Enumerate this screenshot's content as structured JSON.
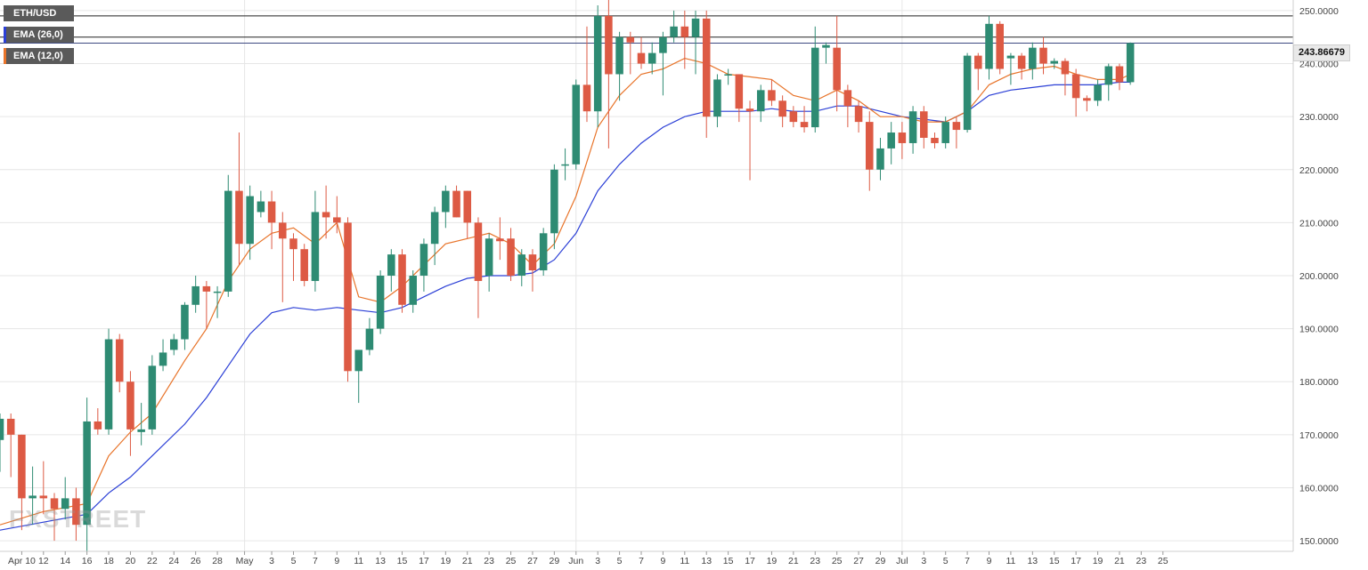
{
  "legend": {
    "symbol": "ETH/USD",
    "ema_long": "EMA (26,0)",
    "ema_short": "EMA (12,0)"
  },
  "price_tag": "243.86679",
  "watermark": "FXSTREET",
  "colors": {
    "bull": "#2e8b73",
    "bear": "#dd5a44",
    "ema_long": "#2b3fd6",
    "ema_short": "#e8742a",
    "grid": "#e6e6e6"
  },
  "chart_data": {
    "type": "candlestick",
    "ylim": [
      148,
      252
    ],
    "yticks": [
      "150.0000",
      "160.0000",
      "170.0000",
      "180.0000",
      "190.0000",
      "200.0000",
      "210.0000",
      "220.0000",
      "230.0000",
      "240.0000",
      "250.0000"
    ],
    "ytick_values": [
      150,
      160,
      170,
      180,
      190,
      200,
      210,
      220,
      230,
      240,
      250
    ],
    "x_range": [
      0,
      118
    ],
    "xtick_labels": [
      "Apr 10",
      "12",
      "14",
      "16",
      "18",
      "20",
      "22",
      "24",
      "26",
      "28",
      "May",
      "3",
      "5",
      "7",
      "9",
      "11",
      "13",
      "15",
      "17",
      "19",
      "21",
      "23",
      "25",
      "27",
      "29",
      "Jun",
      "3",
      "5",
      "7",
      "9",
      "11",
      "13",
      "15",
      "17",
      "19",
      "21",
      "23",
      "25",
      "27",
      "29",
      "Jul",
      "3",
      "5",
      "7",
      "9",
      "11",
      "13",
      "15",
      "17",
      "19",
      "21",
      "23",
      "25"
    ],
    "xtick_positions": [
      2,
      4,
      6,
      8,
      10,
      12,
      14,
      16,
      18,
      20,
      22.5,
      25,
      27,
      29,
      31,
      33,
      35,
      37,
      39,
      41,
      43,
      45,
      47,
      49,
      51,
      53,
      55,
      57,
      59,
      61,
      63,
      65,
      67,
      69,
      71,
      73,
      75,
      77,
      79,
      81,
      83,
      85,
      87,
      89,
      91,
      93,
      95,
      97,
      99,
      101,
      103,
      105,
      107
    ],
    "horizontal_lines": [
      249,
      245,
      243.86679
    ],
    "candles": [
      {
        "x": 0,
        "o": 169,
        "h": 174,
        "l": 163,
        "c": 173
      },
      {
        "x": 1,
        "o": 173,
        "h": 174,
        "l": 162,
        "c": 170
      },
      {
        "x": 2,
        "o": 170,
        "h": 170,
        "l": 152,
        "c": 158
      },
      {
        "x": 3,
        "o": 158,
        "h": 164,
        "l": 153,
        "c": 158.5
      },
      {
        "x": 4,
        "o": 158.5,
        "h": 165,
        "l": 155,
        "c": 158
      },
      {
        "x": 5,
        "o": 158,
        "h": 159,
        "l": 150,
        "c": 156
      },
      {
        "x": 6,
        "o": 156,
        "h": 162,
        "l": 154,
        "c": 158
      },
      {
        "x": 7,
        "o": 158,
        "h": 160,
        "l": 150,
        "c": 153
      },
      {
        "x": 8,
        "o": 153,
        "h": 177,
        "l": 148,
        "c": 172.5
      },
      {
        "x": 9,
        "o": 172.5,
        "h": 175,
        "l": 170,
        "c": 171
      },
      {
        "x": 10,
        "o": 171,
        "h": 190,
        "l": 170,
        "c": 188
      },
      {
        "x": 11,
        "o": 188,
        "h": 189,
        "l": 178,
        "c": 180
      },
      {
        "x": 12,
        "o": 180,
        "h": 182,
        "l": 166,
        "c": 171
      },
      {
        "x": 13,
        "o": 170.5,
        "h": 176,
        "l": 168,
        "c": 171
      },
      {
        "x": 14,
        "o": 171,
        "h": 185,
        "l": 170,
        "c": 183
      },
      {
        "x": 15,
        "o": 183,
        "h": 188,
        "l": 182,
        "c": 185.5
      },
      {
        "x": 16,
        "o": 186,
        "h": 189,
        "l": 185,
        "c": 188
      },
      {
        "x": 17,
        "o": 188,
        "h": 195,
        "l": 186,
        "c": 194.5
      },
      {
        "x": 18,
        "o": 194.5,
        "h": 200,
        "l": 193,
        "c": 198
      },
      {
        "x": 19,
        "o": 198,
        "h": 199,
        "l": 190,
        "c": 197
      },
      {
        "x": 20,
        "o": 197,
        "h": 198,
        "l": 192,
        "c": 197
      },
      {
        "x": 21,
        "o": 197,
        "h": 219,
        "l": 196,
        "c": 216
      },
      {
        "x": 22,
        "o": 216,
        "h": 227,
        "l": 202,
        "c": 206
      },
      {
        "x": 23,
        "o": 206,
        "h": 217,
        "l": 203,
        "c": 215
      },
      {
        "x": 24,
        "o": 212,
        "h": 216,
        "l": 211,
        "c": 214
      },
      {
        "x": 25,
        "o": 214,
        "h": 216,
        "l": 205,
        "c": 210
      },
      {
        "x": 26,
        "o": 210,
        "h": 212,
        "l": 195,
        "c": 207
      },
      {
        "x": 27,
        "o": 207,
        "h": 208,
        "l": 199,
        "c": 205
      },
      {
        "x": 28,
        "o": 205,
        "h": 206,
        "l": 198,
        "c": 199
      },
      {
        "x": 29,
        "o": 199,
        "h": 216,
        "l": 197,
        "c": 212
      },
      {
        "x": 30,
        "o": 212,
        "h": 217,
        "l": 207,
        "c": 211
      },
      {
        "x": 31,
        "o": 211,
        "h": 215,
        "l": 208,
        "c": 210
      },
      {
        "x": 32,
        "o": 210,
        "h": 211,
        "l": 180,
        "c": 182
      },
      {
        "x": 33,
        "o": 182,
        "h": 185,
        "l": 176,
        "c": 186
      },
      {
        "x": 34,
        "o": 186,
        "h": 192,
        "l": 185,
        "c": 190
      },
      {
        "x": 35,
        "o": 190,
        "h": 201,
        "l": 189,
        "c": 200
      },
      {
        "x": 36,
        "o": 200,
        "h": 205,
        "l": 197,
        "c": 204
      },
      {
        "x": 37,
        "o": 204,
        "h": 205,
        "l": 193,
        "c": 194.5
      },
      {
        "x": 38,
        "o": 194.5,
        "h": 201,
        "l": 193,
        "c": 200
      },
      {
        "x": 39,
        "o": 200,
        "h": 207,
        "l": 197,
        "c": 206
      },
      {
        "x": 40,
        "o": 206,
        "h": 213,
        "l": 202,
        "c": 212
      },
      {
        "x": 41,
        "o": 212,
        "h": 217,
        "l": 209,
        "c": 216
      },
      {
        "x": 42,
        "o": 216,
        "h": 217,
        "l": 211,
        "c": 211
      },
      {
        "x": 43,
        "o": 216,
        "h": 216,
        "l": 207,
        "c": 210
      },
      {
        "x": 44,
        "o": 210,
        "h": 211,
        "l": 192,
        "c": 199
      },
      {
        "x": 45,
        "o": 200,
        "h": 208,
        "l": 197,
        "c": 207
      },
      {
        "x": 46,
        "o": 207,
        "h": 211,
        "l": 203,
        "c": 206.5
      },
      {
        "x": 47,
        "o": 207,
        "h": 209,
        "l": 199,
        "c": 200
      },
      {
        "x": 48,
        "o": 200,
        "h": 205,
        "l": 198,
        "c": 204
      },
      {
        "x": 49,
        "o": 204,
        "h": 205,
        "l": 197,
        "c": 201
      },
      {
        "x": 50,
        "o": 201,
        "h": 209,
        "l": 200,
        "c": 208
      },
      {
        "x": 51,
        "o": 208,
        "h": 221,
        "l": 205,
        "c": 220
      },
      {
        "x": 52,
        "o": 221,
        "h": 224,
        "l": 218,
        "c": 221
      },
      {
        "x": 53,
        "o": 221,
        "h": 237,
        "l": 220,
        "c": 236
      },
      {
        "x": 54,
        "o": 236,
        "h": 247,
        "l": 229,
        "c": 231
      },
      {
        "x": 55,
        "o": 231,
        "h": 251,
        "l": 228,
        "c": 249
      },
      {
        "x": 56,
        "o": 249,
        "h": 253,
        "l": 224,
        "c": 238
      },
      {
        "x": 57,
        "o": 238,
        "h": 246,
        "l": 233,
        "c": 245
      },
      {
        "x": 58,
        "o": 245,
        "h": 246,
        "l": 238,
        "c": 244
      },
      {
        "x": 59,
        "o": 242,
        "h": 245,
        "l": 239,
        "c": 240
      },
      {
        "x": 60,
        "o": 240,
        "h": 244,
        "l": 238,
        "c": 242
      },
      {
        "x": 61,
        "o": 242,
        "h": 246,
        "l": 234,
        "c": 245
      },
      {
        "x": 62,
        "o": 245,
        "h": 250,
        "l": 244,
        "c": 247
      },
      {
        "x": 63,
        "o": 247,
        "h": 250,
        "l": 239,
        "c": 245
      },
      {
        "x": 64,
        "o": 245,
        "h": 250,
        "l": 238,
        "c": 248.5
      },
      {
        "x": 65,
        "o": 248.5,
        "h": 250,
        "l": 226,
        "c": 230
      },
      {
        "x": 66,
        "o": 230,
        "h": 238,
        "l": 228,
        "c": 237
      },
      {
        "x": 67,
        "o": 238,
        "h": 239,
        "l": 236,
        "c": 238
      },
      {
        "x": 68,
        "o": 238,
        "h": 238,
        "l": 229,
        "c": 231.5
      },
      {
        "x": 69,
        "o": 231.5,
        "h": 233,
        "l": 218,
        "c": 231
      },
      {
        "x": 70,
        "o": 231,
        "h": 236,
        "l": 229,
        "c": 235
      },
      {
        "x": 71,
        "o": 235,
        "h": 237,
        "l": 232,
        "c": 233
      },
      {
        "x": 72,
        "o": 233,
        "h": 234,
        "l": 228,
        "c": 230
      },
      {
        "x": 73,
        "o": 231,
        "h": 232,
        "l": 228,
        "c": 229
      },
      {
        "x": 74,
        "o": 229,
        "h": 232,
        "l": 227,
        "c": 228
      },
      {
        "x": 75,
        "o": 228,
        "h": 247,
        "l": 227,
        "c": 243
      },
      {
        "x": 76,
        "o": 243,
        "h": 244,
        "l": 240,
        "c": 243.5
      },
      {
        "x": 77,
        "o": 243,
        "h": 249,
        "l": 231,
        "c": 235
      },
      {
        "x": 78,
        "o": 235,
        "h": 236,
        "l": 228,
        "c": 232
      },
      {
        "x": 79,
        "o": 232,
        "h": 233,
        "l": 227,
        "c": 229
      },
      {
        "x": 80,
        "o": 229,
        "h": 231,
        "l": 216,
        "c": 220
      },
      {
        "x": 81,
        "o": 220,
        "h": 226,
        "l": 218,
        "c": 224
      },
      {
        "x": 82,
        "o": 224,
        "h": 229,
        "l": 221,
        "c": 227
      },
      {
        "x": 83,
        "o": 227,
        "h": 229,
        "l": 222,
        "c": 225
      },
      {
        "x": 84,
        "o": 225,
        "h": 232,
        "l": 223,
        "c": 231
      },
      {
        "x": 85,
        "o": 231,
        "h": 232,
        "l": 224,
        "c": 226
      },
      {
        "x": 86,
        "o": 226,
        "h": 227,
        "l": 224,
        "c": 225
      },
      {
        "x": 87,
        "o": 225,
        "h": 230,
        "l": 224,
        "c": 229
      },
      {
        "x": 88,
        "o": 229,
        "h": 230,
        "l": 224,
        "c": 227.5
      },
      {
        "x": 89,
        "o": 227.5,
        "h": 242,
        "l": 227,
        "c": 241.5
      },
      {
        "x": 90,
        "o": 241.5,
        "h": 242,
        "l": 235,
        "c": 239
      },
      {
        "x": 91,
        "o": 239,
        "h": 249,
        "l": 237,
        "c": 247.5
      },
      {
        "x": 92,
        "o": 247.5,
        "h": 248,
        "l": 238,
        "c": 239
      },
      {
        "x": 93,
        "o": 241,
        "h": 242,
        "l": 236,
        "c": 241.5
      },
      {
        "x": 94,
        "o": 241.5,
        "h": 242,
        "l": 237,
        "c": 239
      },
      {
        "x": 95,
        "o": 239,
        "h": 244,
        "l": 237,
        "c": 243
      },
      {
        "x": 96,
        "o": 243,
        "h": 245,
        "l": 238,
        "c": 240
      },
      {
        "x": 97,
        "o": 240,
        "h": 241,
        "l": 239,
        "c": 240.5
      },
      {
        "x": 98,
        "o": 240.5,
        "h": 241,
        "l": 234,
        "c": 238
      },
      {
        "x": 99,
        "o": 238,
        "h": 239,
        "l": 230,
        "c": 233.5
      },
      {
        "x": 100,
        "o": 233.5,
        "h": 234,
        "l": 231,
        "c": 233
      },
      {
        "x": 101,
        "o": 233,
        "h": 237,
        "l": 232,
        "c": 236
      },
      {
        "x": 102,
        "o": 236,
        "h": 240,
        "l": 233,
        "c": 239.5
      },
      {
        "x": 103,
        "o": 239.5,
        "h": 240,
        "l": 235,
        "c": 236.5
      },
      {
        "x": 104,
        "o": 236.5,
        "h": 244,
        "l": 236,
        "c": 243.86679
      }
    ],
    "ema_short": [
      [
        0,
        153
      ],
      [
        4,
        155.5
      ],
      [
        8,
        157
      ],
      [
        10,
        166
      ],
      [
        12,
        170.5
      ],
      [
        14,
        174
      ],
      [
        17,
        184
      ],
      [
        19,
        190
      ],
      [
        21,
        199
      ],
      [
        23,
        205
      ],
      [
        25,
        208
      ],
      [
        27,
        209
      ],
      [
        29,
        206
      ],
      [
        31,
        210
      ],
      [
        33,
        196
      ],
      [
        35,
        195
      ],
      [
        37,
        198
      ],
      [
        39,
        202
      ],
      [
        41,
        206
      ],
      [
        43,
        207
      ],
      [
        45,
        208
      ],
      [
        47,
        206
      ],
      [
        49,
        202
      ],
      [
        51,
        206
      ],
      [
        53,
        215
      ],
      [
        55,
        228
      ],
      [
        57,
        234
      ],
      [
        59,
        238
      ],
      [
        61,
        239
      ],
      [
        63,
        241
      ],
      [
        65,
        240
      ],
      [
        67,
        238
      ],
      [
        69,
        237.5
      ],
      [
        71,
        237
      ],
      [
        73,
        234
      ],
      [
        75,
        233
      ],
      [
        77,
        235
      ],
      [
        79,
        233
      ],
      [
        81,
        230
      ],
      [
        83,
        230
      ],
      [
        85,
        229
      ],
      [
        87,
        229
      ],
      [
        89,
        231
      ],
      [
        91,
        236
      ],
      [
        93,
        238
      ],
      [
        95,
        239
      ],
      [
        97,
        239.5
      ],
      [
        99,
        238
      ],
      [
        101,
        237
      ],
      [
        103,
        237
      ],
      [
        104,
        238
      ]
    ],
    "ema_long": [
      [
        0,
        152
      ],
      [
        4,
        153.5
      ],
      [
        8,
        155
      ],
      [
        10,
        159
      ],
      [
        12,
        162
      ],
      [
        14,
        166
      ],
      [
        17,
        172
      ],
      [
        19,
        177
      ],
      [
        21,
        183
      ],
      [
        23,
        189
      ],
      [
        25,
        193
      ],
      [
        27,
        194
      ],
      [
        29,
        193.5
      ],
      [
        31,
        194
      ],
      [
        33,
        193.5
      ],
      [
        35,
        193
      ],
      [
        37,
        194
      ],
      [
        39,
        196
      ],
      [
        41,
        198
      ],
      [
        43,
        199.5
      ],
      [
        45,
        200
      ],
      [
        47,
        200
      ],
      [
        49,
        200.5
      ],
      [
        51,
        203
      ],
      [
        53,
        208
      ],
      [
        55,
        216
      ],
      [
        57,
        221
      ],
      [
        59,
        225
      ],
      [
        61,
        228
      ],
      [
        63,
        230
      ],
      [
        65,
        231
      ],
      [
        67,
        231
      ],
      [
        69,
        231
      ],
      [
        71,
        231.5
      ],
      [
        73,
        231
      ],
      [
        75,
        231
      ],
      [
        77,
        232
      ],
      [
        79,
        232
      ],
      [
        81,
        231
      ],
      [
        83,
        230
      ],
      [
        85,
        229.5
      ],
      [
        87,
        229
      ],
      [
        89,
        231
      ],
      [
        91,
        234
      ],
      [
        93,
        235
      ],
      [
        95,
        235.5
      ],
      [
        97,
        236
      ],
      [
        99,
        236
      ],
      [
        101,
        236
      ],
      [
        103,
        236.5
      ],
      [
        104,
        236.5
      ]
    ]
  }
}
